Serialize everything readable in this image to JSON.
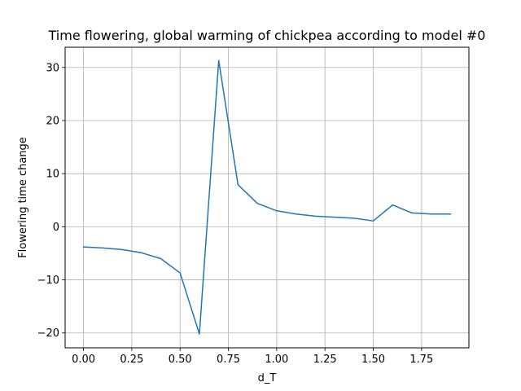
{
  "chart_data": {
    "type": "line",
    "title": "Time flowering, global warming of chickpea according to model #0",
    "xlabel": "d_T",
    "ylabel": "Flowering time change",
    "xlim": [
      -0.095,
      1.995
    ],
    "ylim": [
      -22.8,
      33.8
    ],
    "grid": true,
    "x_ticks": [
      0.0,
      0.25,
      0.5,
      0.75,
      1.0,
      1.25,
      1.5,
      1.75
    ],
    "x_tick_labels": [
      "0.00",
      "0.25",
      "0.50",
      "0.75",
      "1.00",
      "1.25",
      "1.50",
      "1.75"
    ],
    "y_ticks": [
      -20,
      -10,
      0,
      10,
      20,
      30
    ],
    "y_tick_labels": [
      "−20",
      "−10",
      "0",
      "10",
      "20",
      "30"
    ],
    "series": [
      {
        "color": "#1f77b4",
        "x": [
          0.0,
          0.1,
          0.2,
          0.3,
          0.4,
          0.5,
          0.6,
          0.7,
          0.8,
          0.9,
          1.0,
          1.1,
          1.2,
          1.3,
          1.4,
          1.5,
          1.6,
          1.7,
          1.8,
          1.9
        ],
        "y": [
          -3.8,
          -4.0,
          -4.3,
          -4.9,
          -6.0,
          -8.7,
          -20.2,
          31.3,
          7.9,
          4.4,
          3.0,
          2.4,
          2.0,
          1.8,
          1.6,
          1.1,
          4.1,
          2.6,
          2.4,
          2.4
        ]
      }
    ]
  }
}
